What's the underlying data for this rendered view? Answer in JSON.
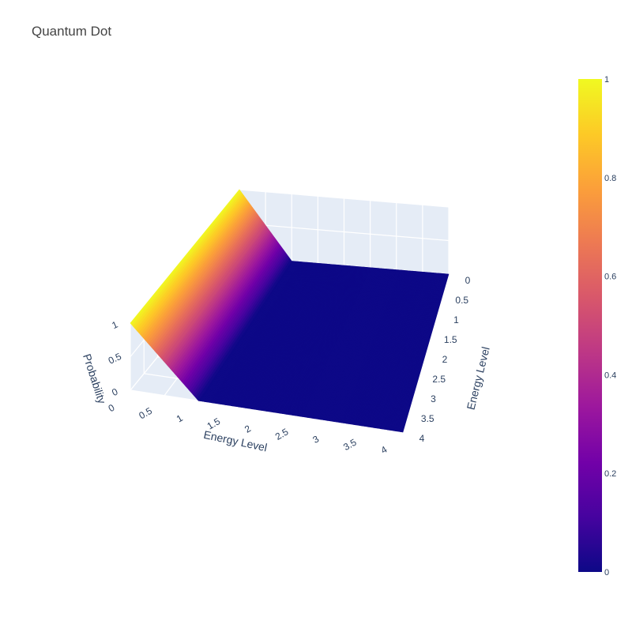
{
  "chart_data": {
    "type": "surface",
    "title": "Quantum Dot",
    "x_axis": {
      "label": "Energy Level",
      "range": [
        0,
        4
      ],
      "ticks": [
        "0",
        "0.5",
        "1",
        "1.5",
        "2",
        "2.5",
        "3",
        "3.5",
        "4"
      ]
    },
    "y_axis": {
      "label": "Energy Level",
      "range": [
        0,
        4
      ],
      "ticks": [
        "0",
        "0.5",
        "1",
        "1.5",
        "2",
        "2.5",
        "3",
        "3.5",
        "4"
      ]
    },
    "z_axis": {
      "label": "Probability",
      "range": [
        0,
        1
      ],
      "ticks": [
        "0",
        "0.5",
        "1"
      ]
    },
    "surface": {
      "x": [
        0,
        0.5,
        1,
        1.5,
        2,
        2.5,
        3,
        3.5,
        4
      ],
      "y": [
        0,
        0.5,
        1,
        1.5,
        2,
        2.5,
        3,
        3.5,
        4
      ],
      "z_by_x": [
        1,
        0.5,
        0,
        0,
        0,
        0,
        0,
        0,
        0
      ]
    },
    "colorbar": {
      "range": [
        0,
        1
      ],
      "ticks": [
        "0",
        "0.2",
        "0.4",
        "0.6",
        "0.8",
        "1"
      ],
      "colorscale": [
        "#0d0887",
        "#46039f",
        "#7201a8",
        "#9c179e",
        "#bd3786",
        "#d8576b",
        "#ed7953",
        "#fb9f3a",
        "#fdca26",
        "#f0f921"
      ]
    },
    "grid": true,
    "legend": "colorbar-right"
  }
}
